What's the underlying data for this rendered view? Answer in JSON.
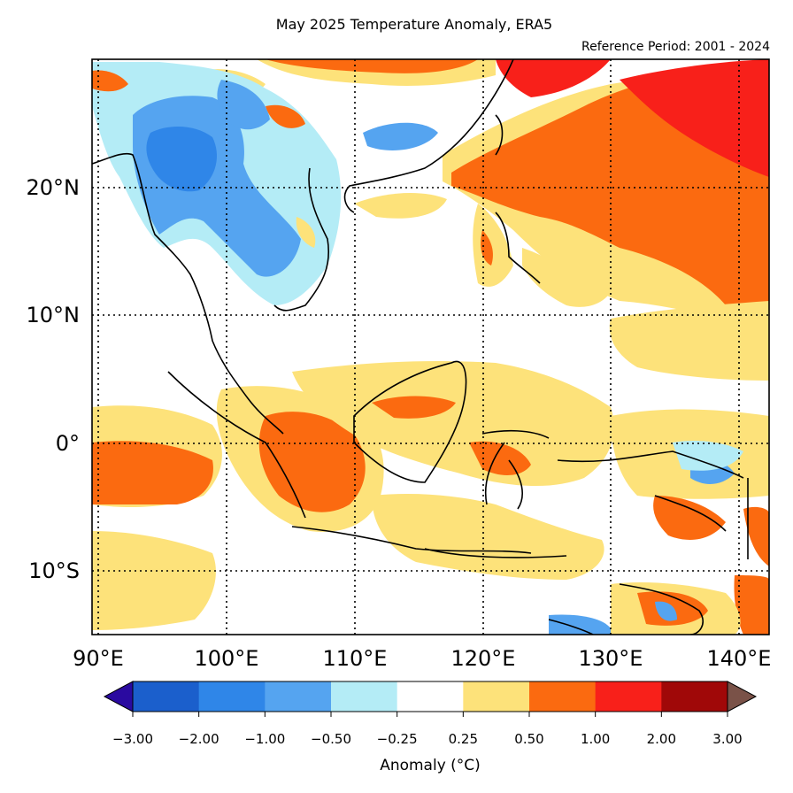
{
  "figure": {
    "title": "May 2025 Temperature Anomaly, ERA5",
    "subtitle": "Reference Period: 2001 - 2024"
  },
  "map": {
    "lat_labels": [
      "20°N",
      "10°N",
      "0°",
      "10°S"
    ],
    "lon_labels": [
      "90°E",
      "100°E",
      "110°E",
      "120°E",
      "130°E",
      "140°E"
    ],
    "extent": {
      "lon": [
        89.6,
        141.5
      ],
      "lat": [
        -15,
        30
      ]
    },
    "gridlines": "dotted"
  },
  "colorbar": {
    "label": "Anomaly (°C)",
    "ticks": [
      "−3.00",
      "−2.00",
      "−1.00",
      "−0.50",
      "−0.25",
      "0.25",
      "0.50",
      "1.00",
      "2.00",
      "3.00"
    ],
    "colors": {
      "below_min": "#2a0aa0",
      "bins": [
        "#1b5fcc",
        "#2f86e8",
        "#55a4f0",
        "#b4ecf6",
        "#ffffff",
        "#fde27a",
        "#fb6a10",
        "#f8201a",
        "#a00808"
      ],
      "above_max": "#7a5248"
    }
  }
}
